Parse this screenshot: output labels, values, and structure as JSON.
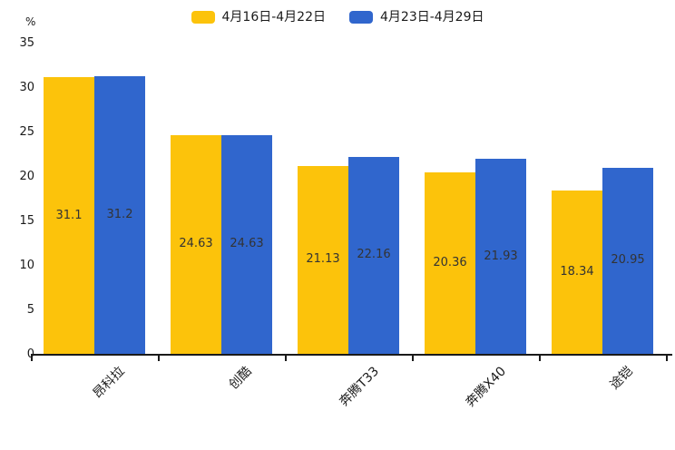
{
  "chart_data": {
    "type": "bar",
    "title": "",
    "categories": [
      "昂科拉",
      "创酷",
      "奔腾T33",
      "奔腾X40",
      "途铠"
    ],
    "series": [
      {
        "name": "4月16日-4月22日",
        "color": "#FCC30B",
        "values": [
          31.1,
          24.63,
          21.13,
          20.36,
          18.34
        ]
      },
      {
        "name": "4月23日-4月29日",
        "color": "#3066CD",
        "values": [
          31.2,
          24.63,
          22.16,
          21.93,
          20.95
        ]
      }
    ],
    "y_unit": "%",
    "ylim": [
      0,
      35
    ],
    "yticks": [
      0,
      5,
      10,
      15,
      20,
      25,
      30,
      35
    ],
    "grid": false,
    "legend_position": "top-center",
    "value_labels": "inside-center",
    "x_label_rotation_deg": 45,
    "axis_color": "#1a1a1a",
    "value_label_color": "#333333",
    "background": "#ffffff"
  }
}
